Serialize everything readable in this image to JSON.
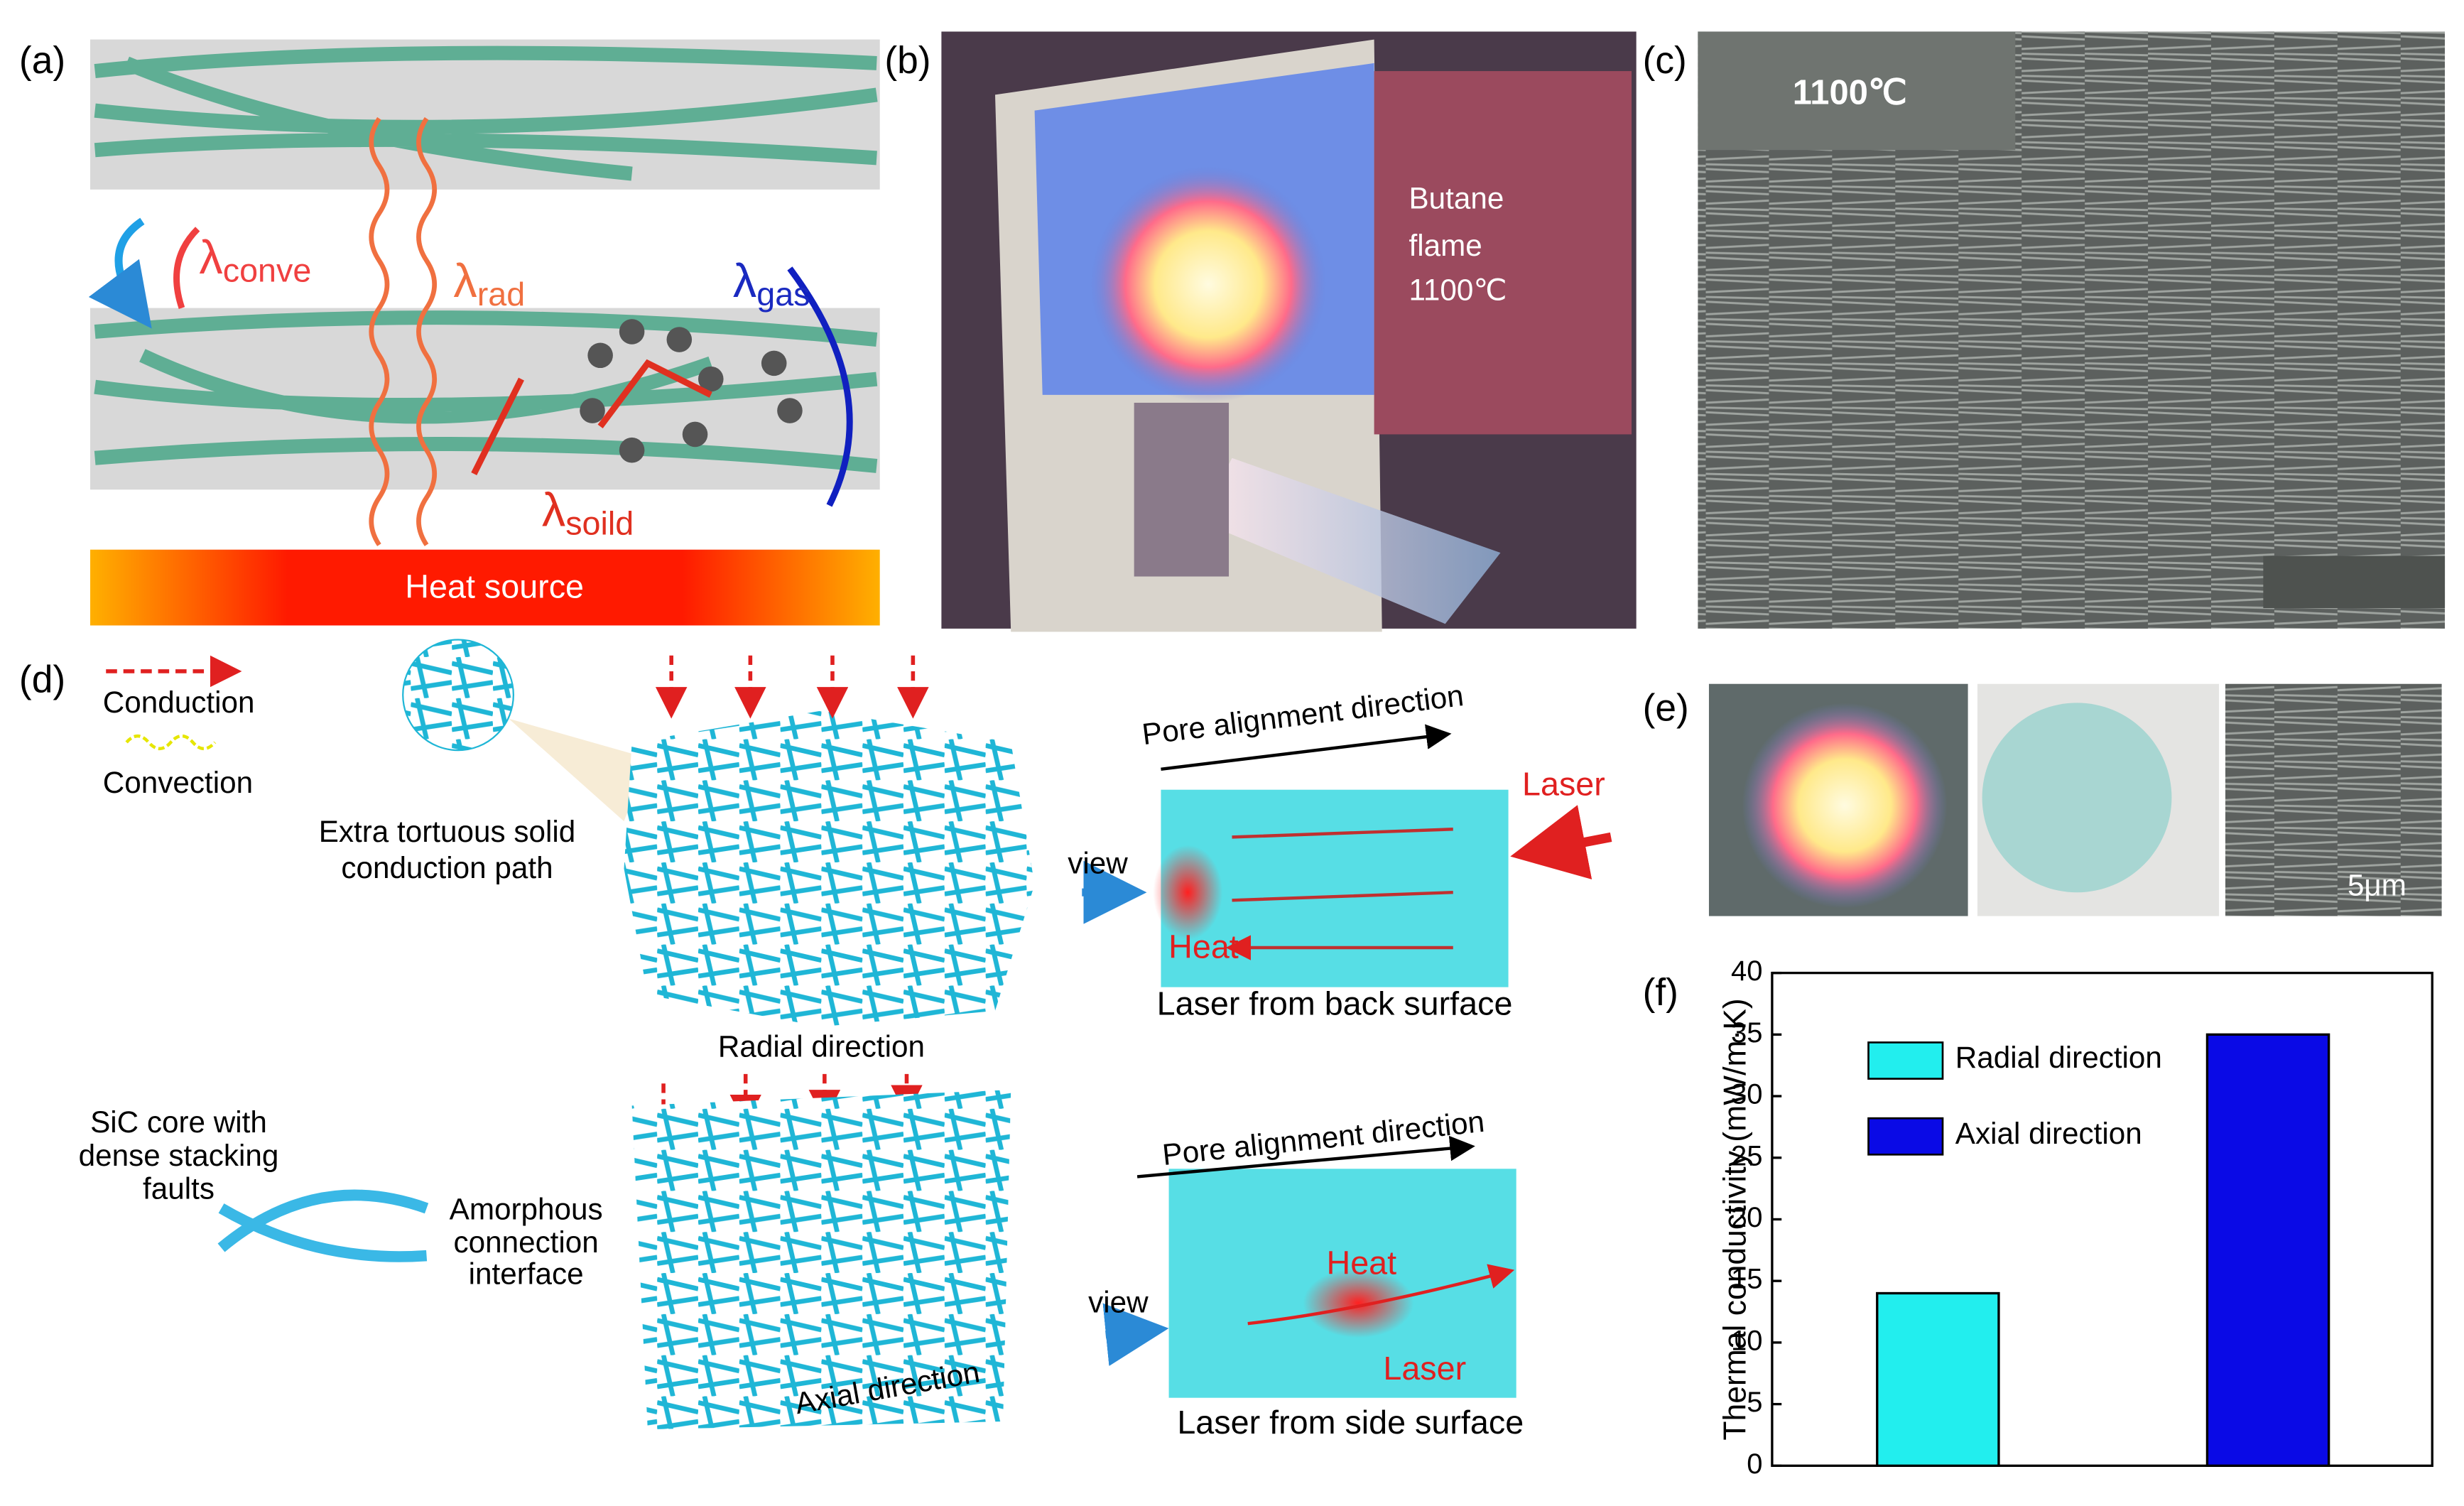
{
  "panels": {
    "a": {
      "label": "(a)",
      "conve": {
        "base": "λ",
        "sub": "conve"
      },
      "rad": {
        "base": "λ",
        "sub": "rad"
      },
      "gas": {
        "base": "λ",
        "sub": "gas"
      },
      "soild": {
        "base": "λ",
        "sub": "soild"
      },
      "heat_source": "Heat source"
    },
    "b": {
      "label": "(b)",
      "lines": [
        "Butane",
        "flame",
        "1100℃"
      ]
    },
    "c": {
      "label": "(c)",
      "temperature": "1100℃"
    },
    "d": {
      "label": "(d)",
      "conduction": "Conduction",
      "convection": "Convection",
      "extra": [
        "Extra tortuous solid",
        "conduction path"
      ],
      "radial": "Radial direction",
      "pore_top": "Pore alignment direction",
      "laser_top": "Laser",
      "view_top": "view",
      "heat_top": "Heat",
      "caption_top": "Laser from back surface",
      "sic": [
        "SiC core with",
        "dense stacking",
        "faults"
      ],
      "amorphous": [
        "Amorphous",
        "connection",
        "interface"
      ],
      "axial": "Axial direction",
      "pore_bottom": "Pore alignment direction",
      "view_bottom": "view",
      "heat_bottom": "Heat",
      "laser_bottom": "Laser",
      "caption_bottom": "Laser from side surface"
    },
    "e": {
      "label": "(e)",
      "scale": "5μm"
    },
    "f": {
      "label": "(f)"
    }
  },
  "chart_data": {
    "type": "bar",
    "ylabel": "Thermal conductivity (mW/m·K)",
    "categories": [
      null,
      null
    ],
    "series": [
      {
        "name": "Radial direction",
        "color": "#22eeee",
        "values": [
          14,
          null
        ]
      },
      {
        "name": "Axial direction",
        "color": "#0a0ae6",
        "values": [
          null,
          35
        ]
      }
    ],
    "ylim": [
      0,
      40
    ],
    "yticks": [
      0,
      5,
      10,
      15,
      20,
      25,
      30,
      35,
      40
    ],
    "legend": "upper-left"
  }
}
